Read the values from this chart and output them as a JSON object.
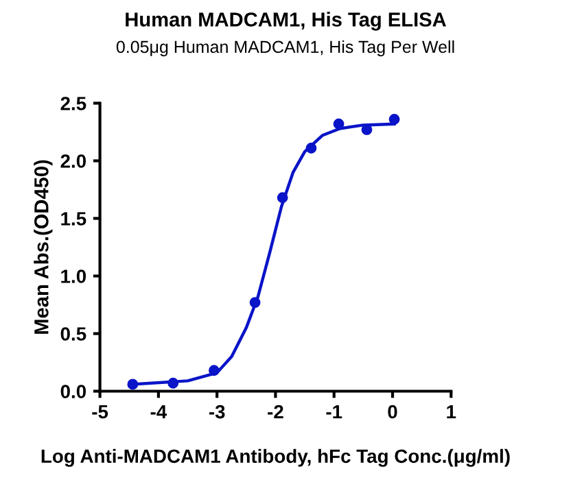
{
  "chart_data": {
    "type": "scatter",
    "title": "Human MADCAM1, His Tag ELISA",
    "subtitle": "0.05μg Human MADCAM1, His Tag Per Well",
    "xlabel": "Log Anti-MADCAM1 Antibody, hFc Tag Conc.(μg/ml)",
    "ylabel": "Mean Abs.(OD450)",
    "series": [
      {
        "color": "#0a14c8",
        "marker": "circle",
        "x": [
          -4.44,
          -3.75,
          -3.05,
          -2.35,
          -1.88,
          -1.39,
          -0.92,
          -0.44,
          0.03
        ],
        "values": [
          0.06,
          0.07,
          0.18,
          0.77,
          1.68,
          2.11,
          2.32,
          2.27,
          2.36
        ]
      },
      {
        "type": "line",
        "color": "#0a14c8",
        "marker": "none",
        "line_style": "solid",
        "x": [
          -4.44,
          -3.5,
          -3.0,
          -2.75,
          -2.5,
          -2.3,
          -2.1,
          -1.9,
          -1.7,
          -1.5,
          -1.2,
          -0.9,
          -0.5,
          0.03
        ],
        "values": [
          0.06,
          0.09,
          0.16,
          0.3,
          0.55,
          0.82,
          1.2,
          1.6,
          1.9,
          2.08,
          2.22,
          2.28,
          2.31,
          2.32
        ]
      }
    ],
    "xlim": [
      -5,
      1
    ],
    "xticks": [
      -5,
      -4,
      -3,
      -2,
      -1,
      0,
      1
    ],
    "ylim": [
      0,
      2.5
    ],
    "yticks": [
      {
        "value": 0,
        "label": "0.0"
      },
      {
        "value": 0.5,
        "label": "0.5"
      },
      {
        "value": 1,
        "label": "1.0"
      },
      {
        "value": 1.5,
        "label": "1.5"
      },
      {
        "value": 2,
        "label": "2.0"
      },
      {
        "value": 2.5,
        "label": "2.5"
      }
    ],
    "grid": false,
    "legend": false
  }
}
